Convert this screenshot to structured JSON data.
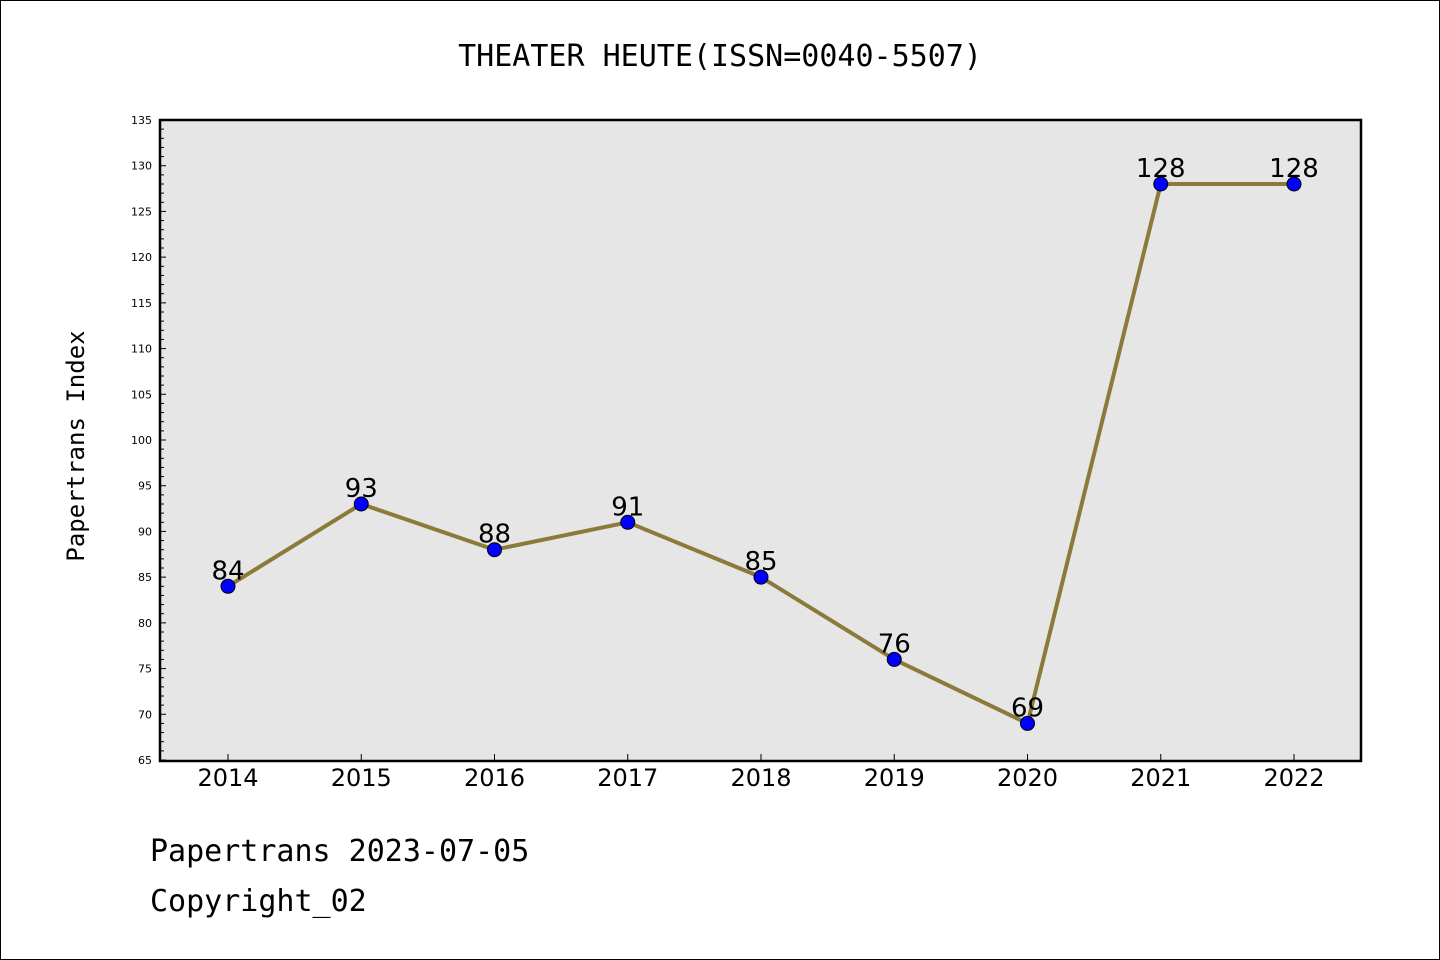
{
  "chart_data": {
    "type": "line",
    "title": "THEATER HEUTE(ISSN=0040-5507)",
    "ylabel": "Papertrans Index",
    "xlabel": "",
    "categories": [
      "2014",
      "2015",
      "2016",
      "2017",
      "2018",
      "2019",
      "2020",
      "2021",
      "2022"
    ],
    "values": [
      84,
      93,
      88,
      91,
      85,
      76,
      69,
      128,
      128
    ],
    "ylim": [
      65,
      135
    ],
    "yticks": [
      65,
      70,
      75,
      80,
      85,
      90,
      95,
      100,
      105,
      110,
      115,
      120,
      125,
      130,
      135
    ],
    "line_color": "#8b7a3a",
    "marker_color": "#0000ff",
    "plot_background": "#e6e6e6",
    "grid": false
  },
  "footer": {
    "date_line": "Papertrans 2023-07-05",
    "copyright_line": "Copyright_02"
  }
}
